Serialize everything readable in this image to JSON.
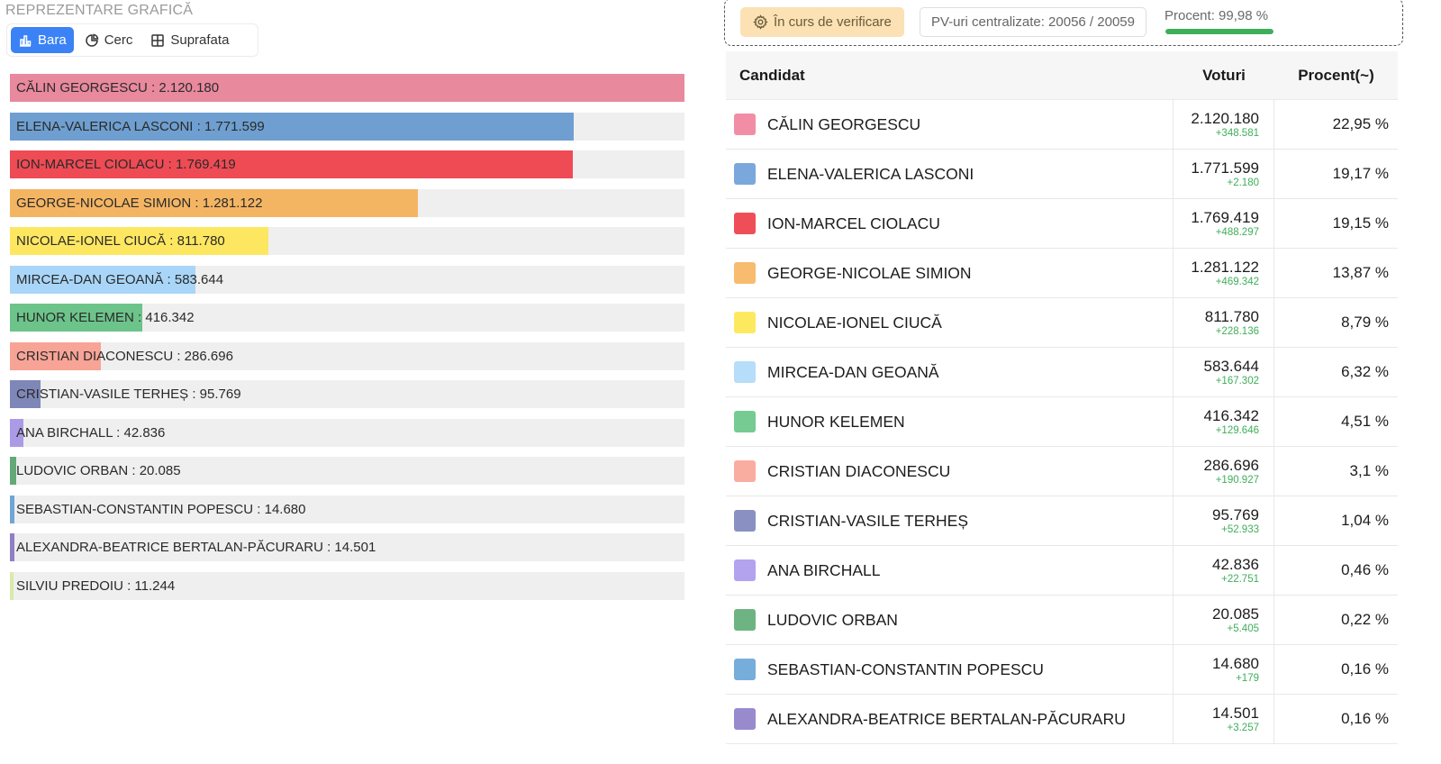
{
  "chart_section": {
    "title": "REPREZENTARE GRAFICĂ",
    "chart_types": [
      {
        "label": "Bara",
        "icon": "bar-chart-icon",
        "active": true
      },
      {
        "label": "Cerc",
        "icon": "pie-chart-icon",
        "active": false
      },
      {
        "label": "Suprafata",
        "icon": "treemap-icon",
        "active": false
      }
    ]
  },
  "chart_data": {
    "type": "bar",
    "orientation": "horizontal",
    "categories": [
      "CĂLIN GEORGESCU",
      "ELENA-VALERICA LASCONI",
      "ION-MARCEL CIOLACU",
      "GEORGE-NICOLAE SIMION",
      "NICOLAE-IONEL CIUCĂ",
      "MIRCEA-DAN GEOANĂ",
      "HUNOR KELEMEN",
      "CRISTIAN DIACONESCU",
      "CRISTIAN-VASILE TERHEȘ",
      "ANA BIRCHALL",
      "LUDOVIC ORBAN",
      "SEBASTIAN-CONSTANTIN POPESCU",
      "ALEXANDRA-BEATRICE BERTALAN-PĂCURARU",
      "SILVIU PREDOIU"
    ],
    "values": [
      2120180,
      1771599,
      1769419,
      1281122,
      811780,
      583644,
      416342,
      286696,
      95769,
      42836,
      20085,
      14680,
      14501,
      11244
    ],
    "labels": [
      "CĂLIN GEORGESCU : 2.120.180",
      "ELENA-VALERICA LASCONI : 1.771.599",
      "ION-MARCEL CIOLACU : 1.769.419",
      "GEORGE-NICOLAE SIMION : 1.281.122",
      "NICOLAE-IONEL CIUCĂ : 811.780",
      "MIRCEA-DAN GEOANĂ : 583.644",
      "HUNOR KELEMEN : 416.342",
      "CRISTIAN DIACONESCU : 286.696",
      "CRISTIAN-VASILE TERHEȘ : 95.769",
      "ANA BIRCHALL : 42.836",
      "LUDOVIC ORBAN : 20.085",
      "SEBASTIAN-CONSTANTIN POPESCU : 14.680",
      "ALEXANDRA-BEATRICE BERTALAN-PĂCURARU : 14.501",
      "SILVIU PREDOIU : 11.244"
    ],
    "colors": [
      "#e8899d",
      "#6e9fd0",
      "#ee4b55",
      "#f4b563",
      "#fde761",
      "#a9d6f8",
      "#6cc48a",
      "#f7a497",
      "#7f87b8",
      "#ab9ae6",
      "#63a978",
      "#6fa6d6",
      "#8f7fc4",
      "#d8eba8"
    ],
    "xlim": [
      0,
      2120180
    ]
  },
  "status": {
    "verification_label": "În curs de verificare",
    "pv_label": "PV-uri centralizate: 20056 / 20059",
    "percent_label": "Procent: 99,98 %",
    "percent_value": 99.98
  },
  "table": {
    "headers": {
      "name": "Candidat",
      "votes": "Voturi",
      "percent": "Procent(~)"
    },
    "rows": [
      {
        "name": "CĂLIN GEORGESCU",
        "votes": "2.120.180",
        "delta": "+348.581",
        "percent": "22,95 %",
        "color": "#f18ea6"
      },
      {
        "name": "ELENA-VALERICA LASCONI",
        "votes": "1.771.599",
        "delta": "+2.180",
        "percent": "19,17 %",
        "color": "#7aa8dc"
      },
      {
        "name": "ION-MARCEL CIOLACU",
        "votes": "1.769.419",
        "delta": "+488.297",
        "percent": "19,15 %",
        "color": "#ef4e58"
      },
      {
        "name": "GEORGE-NICOLAE SIMION",
        "votes": "1.281.122",
        "delta": "+469.342",
        "percent": "13,87 %",
        "color": "#f7bc6e"
      },
      {
        "name": "NICOLAE-IONEL CIUCĂ",
        "votes": "811.780",
        "delta": "+228.136",
        "percent": "8,79 %",
        "color": "#fde95f"
      },
      {
        "name": "MIRCEA-DAN GEOANĂ",
        "votes": "583.644",
        "delta": "+167.302",
        "percent": "6,32 %",
        "color": "#b6ddfa"
      },
      {
        "name": "HUNOR KELEMEN",
        "votes": "416.342",
        "delta": "+129.646",
        "percent": "4,51 %",
        "color": "#75cb92"
      },
      {
        "name": "CRISTIAN DIACONESCU",
        "votes": "286.696",
        "delta": "+190.927",
        "percent": "3,1 %",
        "color": "#f9aca0"
      },
      {
        "name": "CRISTIAN-VASILE TERHEȘ",
        "votes": "95.769",
        "delta": "+52.933",
        "percent": "1,04 %",
        "color": "#8a91c2"
      },
      {
        "name": "ANA BIRCHALL",
        "votes": "42.836",
        "delta": "+22.751",
        "percent": "0,46 %",
        "color": "#b3a2ee"
      },
      {
        "name": "LUDOVIC ORBAN",
        "votes": "20.085",
        "delta": "+5.405",
        "percent": "0,22 %",
        "color": "#6db482"
      },
      {
        "name": "SEBASTIAN-CONSTANTIN POPESCU",
        "votes": "14.680",
        "delta": "+179",
        "percent": "0,16 %",
        "color": "#77addb"
      },
      {
        "name": "ALEXANDRA-BEATRICE BERTALAN-PĂCURARU",
        "votes": "14.501",
        "delta": "+3.257",
        "percent": "0,16 %",
        "color": "#998ace"
      }
    ]
  }
}
